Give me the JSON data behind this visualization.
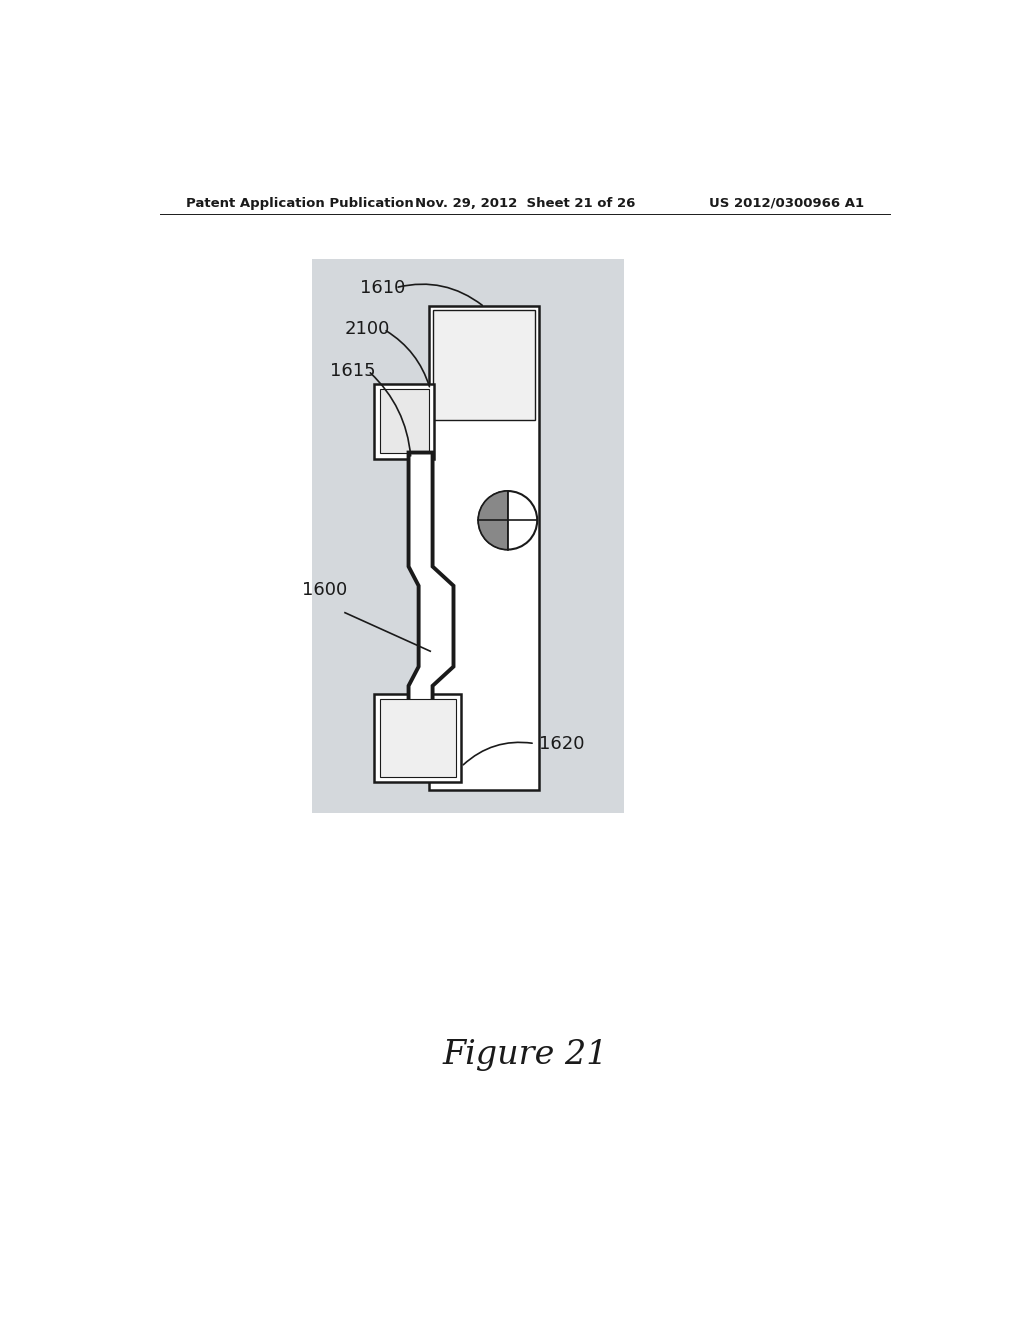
{
  "bg_color": "#ffffff",
  "header_left": "Patent Application Publication",
  "header_mid": "Nov. 29, 2012  Sheet 21 of 26",
  "header_right": "US 2012/0300966 A1",
  "figure_label": "Figure 21",
  "diagram_bg": "#d4d8dc",
  "line_color": "#1a1a1a",
  "lw_main": 1.8,
  "lw_thick": 2.8,
  "figure_fontsize": 24
}
